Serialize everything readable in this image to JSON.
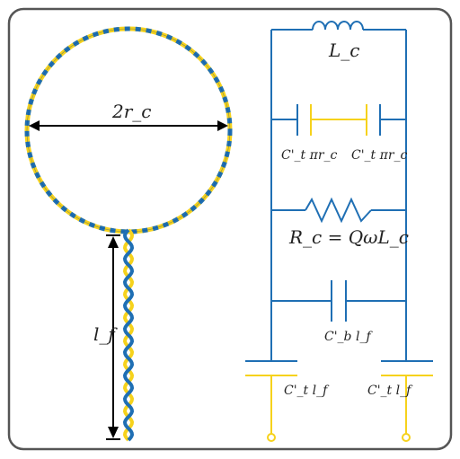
{
  "colors": {
    "blue": "#1f6fb4",
    "yellow": "#f6d21c",
    "black": "#000000",
    "frame": "#555555"
  },
  "loop": {
    "diameter_label": "2r_c",
    "feed_length_label": "l_f"
  },
  "circuit": {
    "inductor_label": "L_c",
    "cap_left_label": "C'_t πr_c",
    "cap_right_label": "C'_t πr_c",
    "resistor_label": "R_c = QωL_c",
    "cap_bottom_label": "C'_b l_f",
    "terminal_left_label": "C'_t l_f",
    "terminal_right_label": "C'_t l_f"
  }
}
